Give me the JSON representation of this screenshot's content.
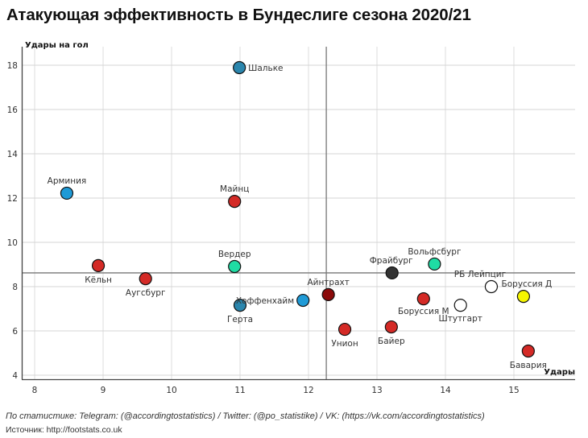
{
  "chart_data": {
    "type": "scatter",
    "title": "Атакующая эффективность в Бундеслиге сезона 2020/21",
    "xlabel": "Удары",
    "ylabel": "Удары на гол",
    "xlim": [
      7.8,
      15.9
    ],
    "ylim": [
      3.8,
      19.2
    ],
    "xticks": [
      8,
      9,
      10,
      11,
      12,
      13,
      14,
      15
    ],
    "yticks": [
      4,
      6,
      8,
      10,
      12,
      14,
      16,
      18
    ],
    "grid": true,
    "reference_lines": {
      "x_mean": 12.26,
      "y_mean": 8.62
    },
    "points": [
      {
        "team": "Шальке",
        "x": 10.99,
        "y": 17.89,
        "color": "#2b86ad",
        "label_pos": "right"
      },
      {
        "team": "Арминия",
        "x": 8.47,
        "y": 12.22,
        "color": "#1f9ad6",
        "label_pos": "top"
      },
      {
        "team": "Майнц",
        "x": 10.92,
        "y": 11.85,
        "color": "#d42a26",
        "label_pos": "top"
      },
      {
        "team": "Кёльн",
        "x": 8.93,
        "y": 8.95,
        "color": "#d42a26",
        "label_pos": "bottom"
      },
      {
        "team": "Аугсбург",
        "x": 9.62,
        "y": 8.36,
        "color": "#d42a26",
        "label_pos": "bottom"
      },
      {
        "team": "Вердер",
        "x": 10.92,
        "y": 8.91,
        "color": "#1fdca4",
        "label_pos": "top"
      },
      {
        "team": "Герта",
        "x": 11.0,
        "y": 7.16,
        "color": "#2b86ad",
        "label_pos": "bottom"
      },
      {
        "team": "Хоффенхайм",
        "x": 11.92,
        "y": 7.38,
        "color": "#1f9ad6",
        "label_pos": "left"
      },
      {
        "team": "Айнтрахт",
        "x": 12.29,
        "y": 7.64,
        "color": "#8b0a0a",
        "label_pos": "top"
      },
      {
        "team": "Унион",
        "x": 12.53,
        "y": 6.07,
        "color": "#d42a26",
        "label_pos": "bottom"
      },
      {
        "team": "Байер",
        "x": 13.21,
        "y": 6.18,
        "color": "#d42a26",
        "label_pos": "bottom"
      },
      {
        "team": "Боруссия М",
        "x": 13.68,
        "y": 7.45,
        "color": "#d42a26",
        "label_pos": "bottom"
      },
      {
        "team": "Фрайбург",
        "x": 13.22,
        "y": 8.62,
        "color": "#333333",
        "label_pos": "top"
      },
      {
        "team": "Вольфсбург",
        "x": 13.84,
        "y": 9.02,
        "color": "#1fdca4",
        "label_pos": "top"
      },
      {
        "team": "Штутгарт",
        "x": 14.22,
        "y": 7.16,
        "color": "#ffffff",
        "label_pos": "bottom"
      },
      {
        "team": "РБ Лейпциг",
        "x": 14.67,
        "y": 8.0,
        "color": "#ffffff",
        "label_pos": "top"
      },
      {
        "team": "Боруссия Д",
        "x": 15.14,
        "y": 7.56,
        "color": "#f5f500",
        "label_pos": "top"
      },
      {
        "team": "Бавария",
        "x": 15.21,
        "y": 5.09,
        "color": "#d42a26",
        "label_pos": "bottom"
      }
    ]
  },
  "footer": {
    "credits": "По статистике: Telegram: (@accordingtostatistics) / Twitter: (@po_statistike) / VK: (https://vk.com/accordingtostatistics)",
    "source": "Источник: http://footstats.co.uk"
  }
}
